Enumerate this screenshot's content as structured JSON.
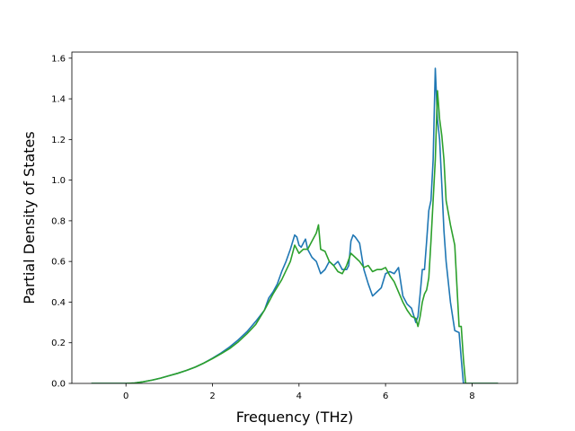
{
  "chart_data": {
    "type": "line",
    "xlabel": "Frequency (THz)",
    "ylabel": "Partial Density of States",
    "xlim": [
      -1.25,
      9.05
    ],
    "ylim": [
      0.0,
      1.63
    ],
    "xticks": [
      0,
      2,
      4,
      6,
      8
    ],
    "yticks": [
      0.0,
      0.2,
      0.4,
      0.6,
      0.8,
      1.0,
      1.2,
      1.4,
      1.6
    ],
    "xtick_labels": [
      "0",
      "2",
      "4",
      "6",
      "8"
    ],
    "ytick_labels": [
      "0.0",
      "0.2",
      "0.4",
      "0.6",
      "0.8",
      "1.0",
      "1.2",
      "1.4",
      "1.6"
    ],
    "grid": false,
    "series": [
      {
        "color": "#1f77b4",
        "x": [
          -0.8,
          -0.6,
          -0.4,
          -0.2,
          0.0,
          0.2,
          0.4,
          0.6,
          0.8,
          1.0,
          1.2,
          1.4,
          1.6,
          1.8,
          2.0,
          2.2,
          2.4,
          2.6,
          2.8,
          3.0,
          3.2,
          3.3,
          3.4,
          3.5,
          3.6,
          3.7,
          3.8,
          3.9,
          3.95,
          4.0,
          4.05,
          4.1,
          4.15,
          4.2,
          4.25,
          4.3,
          4.4,
          4.5,
          4.6,
          4.7,
          4.8,
          4.9,
          5.0,
          5.1,
          5.15,
          5.2,
          5.25,
          5.3,
          5.4,
          5.5,
          5.6,
          5.7,
          5.8,
          5.9,
          6.0,
          6.1,
          6.2,
          6.3,
          6.4,
          6.5,
          6.6,
          6.7,
          6.75,
          6.8,
          6.85,
          6.9,
          6.95,
          7.0,
          7.05,
          7.1,
          7.15,
          7.2,
          7.25,
          7.3,
          7.35,
          7.4,
          7.5,
          7.6,
          7.7,
          7.75,
          7.8,
          7.85,
          7.9,
          8.0,
          8.2,
          8.6
        ],
        "y": [
          0.0,
          0.0,
          0.0,
          0.0,
          0.0,
          0.002,
          0.008,
          0.016,
          0.026,
          0.038,
          0.05,
          0.064,
          0.08,
          0.1,
          0.124,
          0.15,
          0.18,
          0.215,
          0.255,
          0.305,
          0.36,
          0.42,
          0.45,
          0.49,
          0.55,
          0.6,
          0.66,
          0.73,
          0.72,
          0.68,
          0.67,
          0.69,
          0.71,
          0.66,
          0.64,
          0.62,
          0.6,
          0.54,
          0.56,
          0.6,
          0.58,
          0.6,
          0.56,
          0.56,
          0.58,
          0.7,
          0.73,
          0.72,
          0.69,
          0.56,
          0.49,
          0.43,
          0.45,
          0.47,
          0.54,
          0.55,
          0.54,
          0.57,
          0.43,
          0.39,
          0.37,
          0.3,
          0.33,
          0.44,
          0.56,
          0.56,
          0.7,
          0.85,
          0.9,
          1.1,
          1.55,
          1.3,
          1.2,
          0.98,
          0.75,
          0.6,
          0.4,
          0.26,
          0.25,
          0.12,
          0.0,
          0.0,
          0.0,
          0.0,
          0.0,
          0.0
        ]
      },
      {
        "color": "#2ca02c",
        "x": [
          -0.8,
          -0.6,
          -0.4,
          -0.2,
          0.0,
          0.2,
          0.4,
          0.6,
          0.8,
          1.0,
          1.2,
          1.4,
          1.6,
          1.8,
          2.0,
          2.2,
          2.4,
          2.6,
          2.8,
          3.0,
          3.2,
          3.4,
          3.6,
          3.8,
          3.9,
          4.0,
          4.1,
          4.2,
          4.3,
          4.4,
          4.45,
          4.5,
          4.6,
          4.7,
          4.8,
          4.9,
          5.0,
          5.1,
          5.2,
          5.3,
          5.4,
          5.5,
          5.6,
          5.7,
          5.8,
          5.9,
          6.0,
          6.1,
          6.2,
          6.3,
          6.4,
          6.5,
          6.6,
          6.7,
          6.75,
          6.8,
          6.85,
          6.9,
          6.95,
          7.0,
          7.05,
          7.1,
          7.15,
          7.2,
          7.25,
          7.3,
          7.35,
          7.4,
          7.5,
          7.6,
          7.7,
          7.75,
          7.8,
          7.85,
          7.9,
          8.0,
          8.2,
          8.6
        ],
        "y": [
          0.0,
          0.0,
          0.0,
          0.0,
          0.0,
          0.002,
          0.008,
          0.016,
          0.026,
          0.038,
          0.05,
          0.064,
          0.08,
          0.1,
          0.122,
          0.146,
          0.172,
          0.205,
          0.245,
          0.29,
          0.36,
          0.44,
          0.51,
          0.6,
          0.68,
          0.64,
          0.66,
          0.66,
          0.7,
          0.74,
          0.78,
          0.66,
          0.65,
          0.6,
          0.58,
          0.55,
          0.54,
          0.58,
          0.64,
          0.62,
          0.6,
          0.57,
          0.58,
          0.55,
          0.56,
          0.56,
          0.57,
          0.53,
          0.5,
          0.45,
          0.4,
          0.36,
          0.33,
          0.32,
          0.28,
          0.33,
          0.4,
          0.44,
          0.46,
          0.52,
          0.7,
          0.9,
          1.1,
          1.44,
          1.3,
          1.22,
          1.1,
          0.9,
          0.78,
          0.68,
          0.28,
          0.28,
          0.12,
          0.0,
          0.0,
          0.0,
          0.0,
          0.0
        ]
      }
    ]
  }
}
